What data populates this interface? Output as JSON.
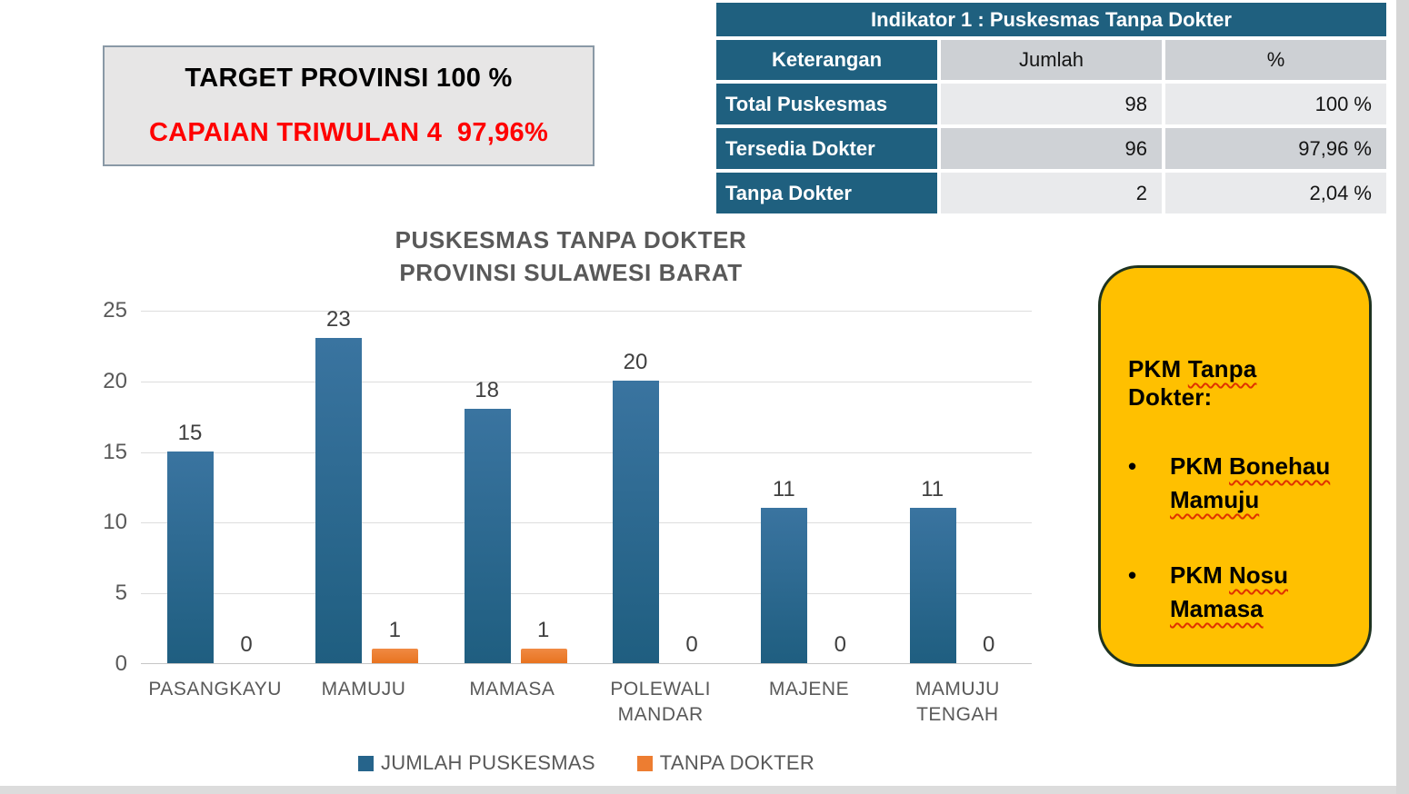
{
  "target_box": {
    "line1": "TARGET PROVINSI 100 %",
    "line2": "CAPAIAN TRIWULAN 4  97,96%",
    "line2_color": "#FF0000"
  },
  "indicator_table": {
    "title": "Indikator 1 : Puskesmas Tanpa Dokter",
    "columns": {
      "keterangan": "Keterangan",
      "jumlah": "Jumlah",
      "percent": "%"
    },
    "rows": [
      {
        "label": "Total Puskesmas",
        "jumlah": "98",
        "percent": "100 %"
      },
      {
        "label": "Tersedia Dokter",
        "jumlah": "96",
        "percent": "97,96 %"
      },
      {
        "label": "Tanpa Dokter",
        "jumlah": "2",
        "percent": "2,04 %"
      }
    ],
    "colors": {
      "teal": "#1F607F",
      "header_gray": "#CDD0D4",
      "row_light": "#E9EAEC",
      "row_dark": "#CFD2D6"
    }
  },
  "chart_data": {
    "type": "bar",
    "title_lines": [
      "PUSKESMAS TANPA DOKTER",
      "PROVINSI SULAWESI BARAT"
    ],
    "categories": [
      "PASANGKAYU",
      "MAMUJU",
      "MAMASA",
      "POLEWALI MANDAR",
      "MAJENE",
      "MAMUJU TENGAH"
    ],
    "series": [
      {
        "name": "JUMLAH PUSKESMAS",
        "color": "#26648B",
        "color_top": "#3A74A0",
        "color_bottom": "#1F5E80",
        "values": [
          15,
          23,
          18,
          20,
          11,
          11
        ]
      },
      {
        "name": "TANPA DOKTER",
        "color": "#ED7D31",
        "color_top": "#F08A43",
        "color_bottom": "#E8731F",
        "values": [
          0,
          1,
          1,
          0,
          0,
          0
        ]
      }
    ],
    "ylim": [
      0,
      25
    ],
    "yticks": [
      0,
      5,
      10,
      15,
      20,
      25
    ],
    "grid": true,
    "legend_position": "bottom",
    "data_labels": true
  },
  "note_box": {
    "bullet_char": "•",
    "bg": "#FFC000",
    "border": "#1E3321",
    "heading": [
      {
        "text": "PKM ",
        "wavy": false
      },
      {
        "text": "Tanpa",
        "wavy": true
      },
      {
        "text": " Dokter:",
        "wavy": false
      }
    ],
    "items": [
      [
        [
          {
            "text": "PKM ",
            "wavy": false
          },
          {
            "text": "Bonehau",
            "wavy": true
          }
        ],
        [
          {
            "text": "Mamuju",
            "wavy": true
          }
        ]
      ],
      [
        [
          {
            "text": "PKM ",
            "wavy": false
          },
          {
            "text": "Nosu",
            "wavy": true
          }
        ],
        [
          {
            "text": "Mamasa",
            "wavy": true
          }
        ]
      ]
    ]
  }
}
